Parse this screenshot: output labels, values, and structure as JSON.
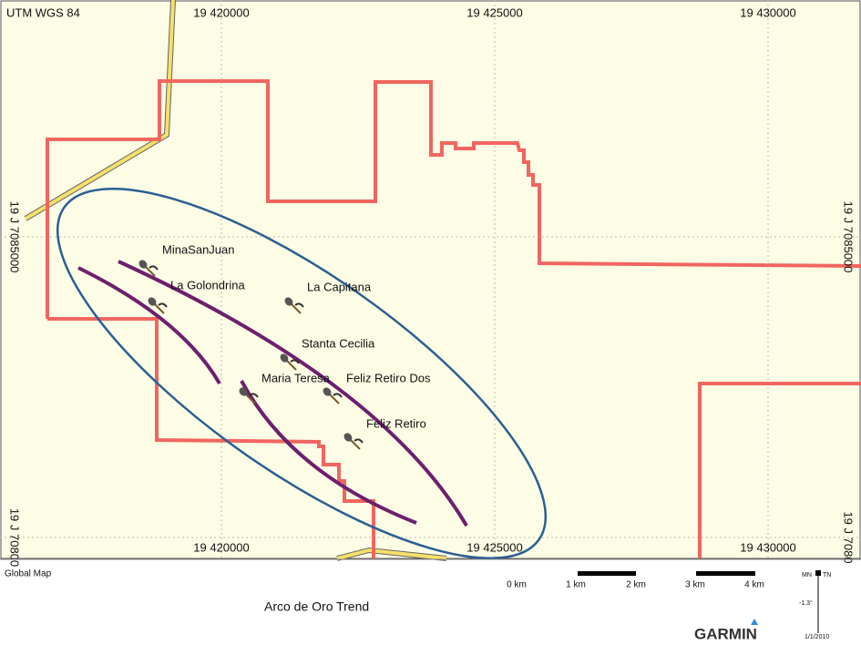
{
  "header": {
    "datum": "UTM WGS 84"
  },
  "grid": {
    "top_labels": [
      "19 420000",
      "19 425000",
      "19 430000"
    ],
    "bottom_labels": [
      "19 420000",
      "19 425000",
      "19 430000"
    ],
    "left_labels": [
      "19 J 7085000",
      "19 J 70800"
    ],
    "right_labels": [
      "19 J 7085000",
      "19 J 7080"
    ]
  },
  "sites": [
    {
      "label": "MinaSanJuan"
    },
    {
      "label": "La Golondrina"
    },
    {
      "label": "La Capitana"
    },
    {
      "label": "Stanta Cecilia"
    },
    {
      "label": "Maria Teresa"
    },
    {
      "label": "Feliz Retiro Dos"
    },
    {
      "label": "Feliz Retiro"
    }
  ],
  "footer": {
    "source": "Global Map",
    "caption": "Arco de Oro Trend",
    "scale_labels": [
      "0 km",
      "1 km",
      "2 km",
      "3 km",
      "4 km"
    ],
    "north": {
      "mn": "MN",
      "tn": "TN",
      "declination": "-1.3°",
      "date": "1/1/2010"
    },
    "brand": "GARMIN"
  }
}
